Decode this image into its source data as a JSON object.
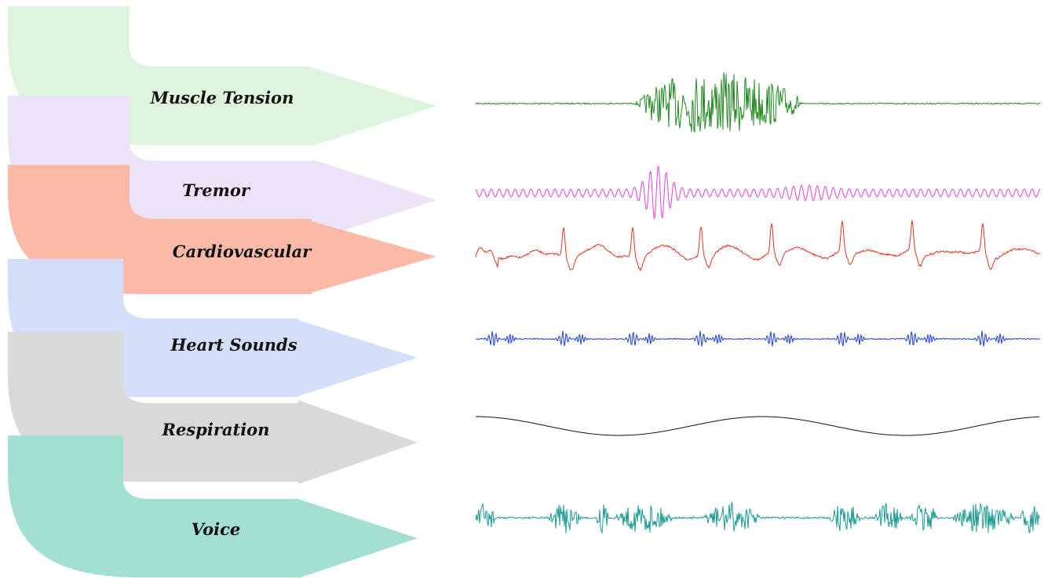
{
  "signals": [
    {
      "label": "Muscle Tension",
      "color": "#1f8a1f",
      "fill": "#dff4dd",
      "pattern": "burst"
    },
    {
      "label": "Tremor",
      "color": "#e040e0",
      "fill": "#ede3f8",
      "pattern": "tremor"
    },
    {
      "label": "Cardiovascular",
      "color": "#e0341c",
      "fill": "#fbb9a8",
      "pattern": "cardio"
    },
    {
      "label": "Heart Sounds",
      "color": "#1c3cd8",
      "fill": "#d4defa",
      "pattern": "heartsound"
    },
    {
      "label": "Respiration",
      "color": "#111111",
      "fill": "#d9d9d9",
      "pattern": "sine"
    },
    {
      "label": "Voice",
      "color": "#1a9a92",
      "fill": "#a3e0d2",
      "pattern": "voice"
    }
  ]
}
